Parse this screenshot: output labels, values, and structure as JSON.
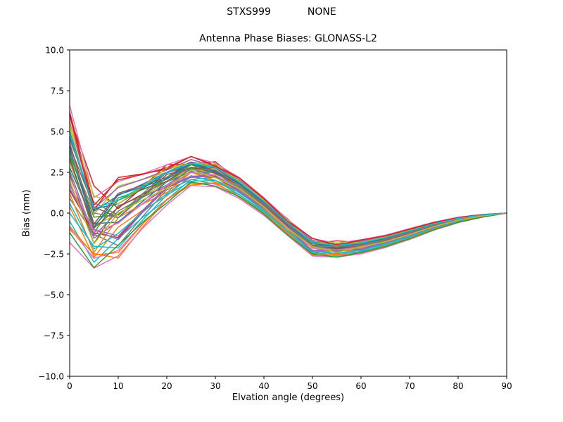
{
  "chart_data": {
    "type": "line",
    "suptitle_left": "STXS999",
    "suptitle_right": "NONE",
    "title": "Antenna Phase Biases: GLONASS-L2",
    "xlabel": "Elvation angle (degrees)",
    "ylabel": "Bias (mm)",
    "xlim": [
      0,
      90
    ],
    "ylim": [
      -10,
      10
    ],
    "xticks": [
      0,
      10,
      20,
      30,
      40,
      50,
      60,
      70,
      80,
      90
    ],
    "xtick_labels": [
      "0",
      "10",
      "20",
      "30",
      "40",
      "50",
      "60",
      "70",
      "80",
      "90"
    ],
    "yticks": [
      -10,
      -7.5,
      -5,
      -2.5,
      0,
      2.5,
      5,
      7.5,
      10
    ],
    "ytick_labels": [
      "−10.0",
      "−7.5",
      "−5.0",
      "−2.5",
      "0.0",
      "2.5",
      "5.0",
      "7.5",
      "10.0"
    ],
    "grid": false,
    "legend": "none",
    "line_width": 1.5,
    "axis_color": "#000000",
    "background": "#ffffff",
    "x": [
      0,
      5,
      10,
      15,
      20,
      25,
      30,
      35,
      40,
      45,
      50,
      55,
      60,
      65,
      70,
      75,
      80,
      85,
      90
    ],
    "series": [
      {
        "color": "#1f77b4",
        "values": [
          4.7,
          0.26,
          0.57,
          1.5,
          2.46,
          2.98,
          2.79,
          1.85,
          0.7,
          -0.61,
          -1.86,
          -1.98,
          -1.86,
          -1.52,
          -1.1,
          -0.66,
          -0.33,
          -0.12,
          0
        ]
      },
      {
        "color": "#ff7f0e",
        "values": [
          0.4,
          -2.71,
          -0.86,
          0.17,
          1.05,
          2.3,
          1.89,
          1.27,
          0.14,
          -1.19,
          -2.25,
          -2.57,
          -2.23,
          -1.91,
          -1.45,
          -0.92,
          -0.5,
          -0.2,
          0
        ]
      },
      {
        "color": "#2ca02c",
        "values": [
          3.5,
          -1.21,
          0.93,
          1.45,
          1.94,
          2.98,
          2.41,
          1.75,
          0.55,
          -0.84,
          -1.84,
          -2.27,
          -1.9,
          -1.63,
          -1.2,
          -0.74,
          -0.37,
          -0.14,
          0
        ]
      },
      {
        "color": "#d62728",
        "values": [
          5.9,
          1.67,
          0.27,
          1.58,
          2.97,
          2.99,
          3.15,
          1.96,
          0.86,
          -0.39,
          -1.86,
          -1.7,
          -1.81,
          -1.41,
          -1.01,
          -0.59,
          -0.28,
          -0.09,
          0
        ]
      },
      {
        "color": "#9467bd",
        "values": [
          1.9,
          -1.54,
          -0.53,
          0.56,
          1.57,
          2.49,
          2.23,
          1.46,
          0.34,
          -0.97,
          -2.14,
          -2.34,
          -2.11,
          -1.77,
          -1.33,
          -0.83,
          -0.44,
          -0.17,
          0
        ]
      },
      {
        "color": "#8c564b",
        "values": [
          4.1,
          0.38,
          -0.27,
          1.05,
          2.37,
          2.72,
          2.77,
          1.72,
          0.63,
          -0.64,
          -2.02,
          -1.96,
          -1.96,
          -1.58,
          -1.15,
          -0.7,
          -0.35,
          -0.13,
          0
        ]
      },
      {
        "color": "#e377c2",
        "values": [
          6.6,
          0.95,
          1.94,
          2.4,
          2.96,
          3.46,
          3.06,
          2.17,
          0.95,
          -0.42,
          -1.56,
          -1.84,
          -1.63,
          -1.35,
          -0.95,
          -0.55,
          -0.25,
          -0.08,
          0
        ]
      },
      {
        "color": "#7f7f7f",
        "values": [
          0.9,
          -1.29,
          -1.99,
          -0.22,
          1.43,
          2.05,
          2.21,
          1.23,
          0.21,
          -1.01,
          -2.42,
          -2.29,
          -2.29,
          -1.86,
          -1.41,
          -0.89,
          -0.48,
          -0.19,
          0
        ]
      },
      {
        "color": "#bcbd22",
        "values": [
          5.3,
          -0.07,
          1.65,
          2.06,
          2.51,
          3.29,
          2.77,
          2.01,
          0.78,
          -0.61,
          -1.66,
          -2.04,
          -1.73,
          -1.47,
          -1.05,
          -0.63,
          -0.3,
          -0.11,
          0
        ]
      },
      {
        "color": "#17becf",
        "values": [
          -0.5,
          -3.01,
          -1.55,
          -0.27,
          0.82,
          2.06,
          1.77,
          1.11,
          0.03,
          -1.28,
          -2.4,
          -2.63,
          -2.34,
          -1.99,
          -1.52,
          -0.98,
          -0.53,
          -0.22,
          0
        ]
      },
      {
        "color": "#1f77b4",
        "values": [
          2.8,
          -0.64,
          -0.56,
          0.71,
          1.92,
          2.55,
          2.48,
          1.55,
          0.46,
          -0.83,
          -2.12,
          -2.16,
          -2.06,
          -1.69,
          -1.25,
          -0.78,
          -0.4,
          -0.16,
          0
        ]
      },
      {
        "color": "#ff7f0e",
        "values": [
          -1.0,
          -2.48,
          -2.76,
          -0.86,
          0.83,
          1.72,
          1.84,
          0.96,
          -0.04,
          -1.26,
          -2.62,
          -2.53,
          -2.47,
          -2.03,
          -1.56,
          -1.01,
          -0.55,
          -0.23,
          0
        ]
      },
      {
        "color": "#2ca02c",
        "values": [
          3.8,
          -0.79,
          0.78,
          1.44,
          2.08,
          2.96,
          2.52,
          1.77,
          0.59,
          -0.78,
          -1.86,
          -2.19,
          -1.89,
          -1.6,
          -1.17,
          -0.72,
          -0.36,
          -0.14,
          0
        ]
      },
      {
        "color": "#d62728",
        "values": [
          1.4,
          -1.21,
          -1.5,
          0.07,
          1.54,
          2.21,
          2.26,
          1.32,
          0.27,
          -0.97,
          -2.32,
          -2.27,
          -2.22,
          -1.82,
          -1.37,
          -0.86,
          -0.46,
          -0.18,
          0
        ]
      },
      {
        "color": "#9467bd",
        "values": [
          5.6,
          0.3,
          1.56,
          2.07,
          2.64,
          3.29,
          2.86,
          2.03,
          0.82,
          -0.55,
          -1.66,
          -1.97,
          -1.72,
          -1.44,
          -1.03,
          -0.61,
          -0.29,
          -0.1,
          0
        ]
      },
      {
        "color": "#8c564b",
        "values": [
          2.4,
          -1.86,
          0.44,
          1.05,
          1.6,
          2.77,
          2.2,
          1.59,
          0.4,
          -0.97,
          -1.96,
          -2.4,
          -2.0,
          -1.73,
          -1.29,
          -0.8,
          -0.42,
          -0.16,
          0
        ]
      },
      {
        "color": "#e377c2",
        "values": [
          -1.8,
          -3.37,
          -2.62,
          -0.94,
          0.5,
          1.69,
          1.61,
          0.88,
          -0.14,
          -1.4,
          -2.63,
          -2.7,
          -2.5,
          -2.11,
          -1.62,
          -1.05,
          -0.59,
          -0.25,
          0
        ]
      },
      {
        "color": "#7f7f7f",
        "values": [
          4.5,
          0.65,
          -0.13,
          1.18,
          2.5,
          2.79,
          2.85,
          1.77,
          0.68,
          -0.59,
          -1.98,
          -1.9,
          -1.93,
          -1.54,
          -1.12,
          -0.68,
          -0.33,
          -0.12,
          0
        ]
      },
      {
        "color": "#bcbd22",
        "values": [
          3.1,
          -0.78,
          -0.05,
          0.97,
          1.95,
          2.7,
          2.47,
          1.63,
          0.5,
          -0.82,
          -2.02,
          -2.19,
          -2.0,
          -1.67,
          -1.23,
          -0.76,
          -0.39,
          -0.15,
          0
        ]
      },
      {
        "color": "#17becf",
        "values": [
          0,
          -2.03,
          -2.14,
          -0.43,
          1.11,
          1.95,
          2.0,
          1.12,
          0.09,
          -1.15,
          -2.48,
          -2.44,
          -2.36,
          -1.94,
          -1.48,
          -0.95,
          -0.51,
          -0.21,
          0
        ]
      },
      {
        "color": "#1f77b4",
        "values": [
          5.0,
          0.12,
          1.08,
          1.77,
          2.49,
          3.13,
          2.78,
          1.93,
          0.74,
          -0.61,
          -1.76,
          -2.01,
          -1.8,
          -1.49,
          -1.08,
          -0.65,
          -0.31,
          -0.11,
          0
        ]
      },
      {
        "color": "#ff7f0e",
        "values": [
          1.2,
          -2.42,
          -0.28,
          0.55,
          1.26,
          2.5,
          2.01,
          1.4,
          0.25,
          -1.11,
          -2.13,
          -2.51,
          -2.13,
          -1.84,
          -1.38,
          -0.87,
          -0.47,
          -0.19,
          0
        ]
      },
      {
        "color": "#2ca02c",
        "values": [
          3.6,
          -0.25,
          -0.1,
          1.04,
          2.15,
          2.73,
          2.61,
          1.68,
          0.56,
          -0.74,
          -2.01,
          -2.08,
          -1.98,
          -1.62,
          -1.19,
          -0.73,
          -0.37,
          -0.14,
          0
        ]
      },
      {
        "color": "#d62728",
        "values": [
          6.2,
          0.48,
          2.04,
          2.37,
          2.79,
          3.46,
          2.94,
          2.14,
          0.9,
          -0.49,
          -1.56,
          -1.93,
          -1.65,
          -1.39,
          -0.98,
          -0.57,
          -0.27,
          -0.09,
          0
        ]
      },
      {
        "color": "#9467bd",
        "values": [
          1.7,
          -0.99,
          -1.41,
          0.16,
          1.64,
          2.26,
          2.33,
          1.36,
          0.31,
          -0.93,
          -2.3,
          -2.23,
          -2.2,
          -1.79,
          -1.34,
          -0.84,
          -0.45,
          -0.18,
          0
        ]
      },
      {
        "color": "#8c564b",
        "values": [
          4.3,
          -0.67,
          1.21,
          1.7,
          2.2,
          3.11,
          2.58,
          1.86,
          0.65,
          -0.73,
          -1.77,
          -2.16,
          -1.83,
          -1.56,
          -1.13,
          -0.69,
          -0.34,
          -0.13,
          0
        ]
      },
      {
        "color": "#e377c2",
        "values": [
          -0.9,
          -2.78,
          -2.29,
          -0.65,
          0.79,
          1.84,
          1.79,
          1.01,
          -0.03,
          -1.28,
          -2.54,
          -2.59,
          -2.42,
          -2.03,
          -1.55,
          -1.0,
          -0.55,
          -0.23,
          0
        ]
      },
      {
        "color": "#7f7f7f",
        "values": [
          2.6,
          -1.4,
          0.12,
          0.96,
          1.73,
          2.71,
          2.31,
          1.59,
          0.43,
          -0.92,
          -2.01,
          -2.31,
          -2.02,
          -1.71,
          -1.27,
          -0.79,
          -0.41,
          -0.16,
          0
        ]
      },
      {
        "color": "#bcbd22",
        "values": [
          5.5,
          1.05,
          0.55,
          1.63,
          2.77,
          3.03,
          3.0,
          1.94,
          0.81,
          -0.48,
          -1.83,
          -1.82,
          -1.81,
          -1.45,
          -1.04,
          -0.62,
          -0.29,
          -0.1,
          0
        ]
      },
      {
        "color": "#17becf",
        "values": [
          0.6,
          -2.2,
          -1.24,
          0.05,
          1.19,
          2.22,
          2.01,
          1.26,
          0.17,
          -1.13,
          -2.31,
          -2.47,
          -2.25,
          -1.89,
          -1.43,
          -0.91,
          -0.49,
          -0.2,
          0
        ]
      },
      {
        "color": "#1f77b4",
        "values": [
          4.0,
          -0.88,
          1.12,
          1.61,
          2.1,
          3.06,
          2.51,
          1.82,
          0.61,
          -0.77,
          -1.79,
          -2.21,
          -1.85,
          -1.58,
          -1.16,
          -0.71,
          -0.35,
          -0.13,
          0
        ]
      },
      {
        "color": "#ff7f0e",
        "values": [
          -0.8,
          -2.57,
          -2.42,
          -0.69,
          0.85,
          1.82,
          1.84,
          1.01,
          -0.01,
          -1.25,
          -2.56,
          -2.54,
          -2.43,
          -2.02,
          -1.54,
          -0.99,
          -0.55,
          -0.23,
          0
        ]
      },
      {
        "color": "#2ca02c",
        "values": [
          -1.2,
          -3.34,
          -1.96,
          -0.56,
          0.62,
          1.9,
          1.66,
          1.0,
          -0.06,
          -1.36,
          -2.5,
          -2.7,
          -2.41,
          -2.05,
          -1.57,
          -1.02,
          -0.56,
          -0.24,
          0
        ]
      },
      {
        "color": "#d62728",
        "values": [
          6.0,
          0.17,
          2.18,
          2.4,
          2.69,
          3.48,
          2.86,
          2.13,
          0.87,
          -0.54,
          -1.54,
          -2.0,
          -1.65,
          -1.4,
          -1.0,
          -0.59,
          -0.27,
          -0.09,
          0
        ]
      },
      {
        "color": "#9467bd",
        "values": [
          1.5,
          -1.01,
          -1.63,
          0.04,
          1.6,
          2.19,
          2.31,
          1.32,
          0.29,
          -0.95,
          -2.34,
          -2.23,
          -2.23,
          -1.81,
          -1.36,
          -0.86,
          -0.45,
          -0.18,
          0
        ]
      },
      {
        "color": "#8c564b",
        "values": [
          3.3,
          -0.92,
          0.35,
          1.17,
          1.96,
          2.82,
          2.46,
          1.68,
          0.52,
          -0.82,
          -1.95,
          -2.21,
          -1.96,
          -1.65,
          -1.21,
          -0.75,
          -0.38,
          -0.15,
          0
        ]
      },
      {
        "color": "#e377c2",
        "values": [
          2.2,
          -1.17,
          -0.62,
          0.58,
          1.7,
          2.49,
          2.33,
          1.48,
          0.38,
          -0.92,
          -2.15,
          -2.26,
          -2.1,
          -1.75,
          -1.3,
          -0.81,
          -0.43,
          -0.17,
          0
        ]
      },
      {
        "color": "#7f7f7f",
        "values": [
          3.7,
          0.01,
          -0.29,
          0.97,
          2.22,
          2.69,
          2.67,
          1.67,
          0.57,
          -0.7,
          -2.04,
          -2.03,
          -1.99,
          -1.61,
          -1.18,
          -0.72,
          -0.37,
          -0.14,
          0
        ]
      },
      {
        "color": "#bcbd22",
        "values": [
          2.0,
          -1.88,
          0.0,
          0.8,
          1.52,
          2.63,
          2.17,
          1.51,
          0.35,
          -1.0,
          -2.05,
          -2.41,
          -2.06,
          -1.76,
          -1.32,
          -0.83,
          -0.43,
          -0.17,
          0
        ]
      },
      {
        "color": "#17becf",
        "values": [
          4.9,
          0.27,
          0.79,
          1.63,
          2.5,
          3.05,
          2.8,
          1.89,
          0.73,
          -0.6,
          -1.81,
          -1.98,
          -1.83,
          -1.5,
          -1.09,
          -0.65,
          -0.32,
          -0.11,
          0
        ]
      }
    ]
  }
}
